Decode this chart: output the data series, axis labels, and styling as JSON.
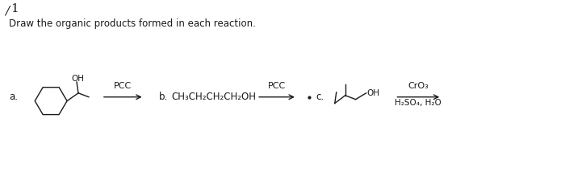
{
  "title_line1": "Draw the organic products formed in each reaction.",
  "page_number_slash": "/",
  "page_number_1": "1",
  "bg_color": "#ffffff",
  "text_color": "#1a1a1a",
  "section_a_label": "a.",
  "section_b_label": "b.",
  "section_c_label": "c.",
  "reagent_a": "PCC",
  "reagent_b": "PCC",
  "reagent_b_molecule": "CH₃CH₂CH₂CH₂OH",
  "reagent_c_line1": "CrO₃",
  "reagent_c_line2": "H₂SO₄, H₂O",
  "font_size_title": 8.5,
  "font_size_labels": 8.5,
  "font_size_reagent": 8,
  "font_size_molecule": 8.5,
  "font_size_page": 11
}
